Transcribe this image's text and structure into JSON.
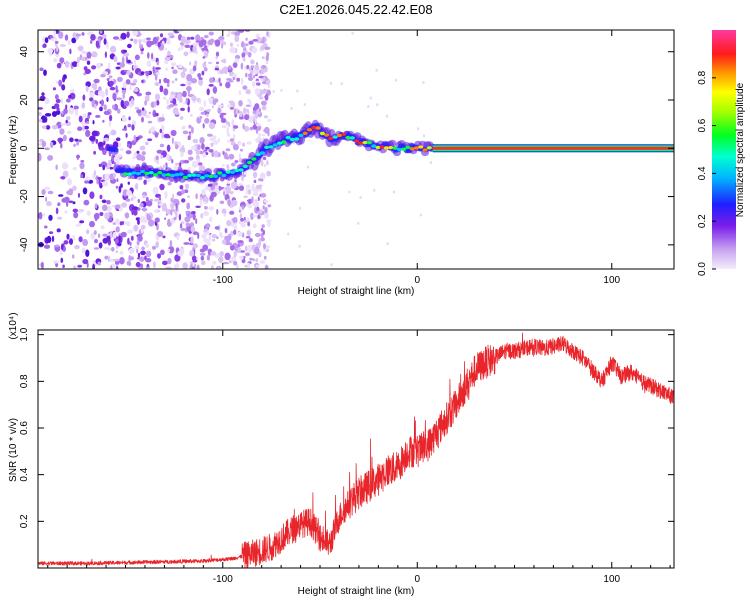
{
  "title": "C2E1.2026.045.22.42.E08",
  "colors": {
    "snr_line": "#e8252b",
    "axis": "#000000"
  },
  "chart_data": [
    {
      "type": "heatmap",
      "name": "spectrogram",
      "xlabel": "Height of straight line (km)",
      "ylabel": "Frequency (Hz)",
      "xlim": [
        -195,
        132
      ],
      "ylim": [
        -50,
        49
      ],
      "xticks": [
        -100,
        0,
        100
      ],
      "yticks": [
        -40,
        -20,
        0,
        20,
        40
      ],
      "colorbar": {
        "label": "Normalized spectral amplitude",
        "range": [
          0.0,
          1.0
        ],
        "ticks": [
          "0.0",
          "0.2",
          "0.4",
          "0.6",
          "0.8"
        ],
        "tick_values": [
          0.0,
          0.2,
          0.4,
          0.6,
          0.8
        ]
      },
      "ridge": [
        {
          "x": -155,
          "y": -10
        },
        {
          "x": -140,
          "y": -10
        },
        {
          "x": -125,
          "y": -11
        },
        {
          "x": -110,
          "y": -12
        },
        {
          "x": -95,
          "y": -10
        },
        {
          "x": -85,
          "y": -6
        },
        {
          "x": -78,
          "y": 0
        },
        {
          "x": -70,
          "y": 3
        },
        {
          "x": -60,
          "y": 5
        },
        {
          "x": -52,
          "y": 9
        },
        {
          "x": -45,
          "y": 4
        },
        {
          "x": -38,
          "y": 6
        },
        {
          "x": -30,
          "y": 3
        },
        {
          "x": -20,
          "y": 1
        },
        {
          "x": -10,
          "y": 0
        },
        {
          "x": 0,
          "y": 0
        },
        {
          "x": 10,
          "y": 0
        },
        {
          "x": 132,
          "y": 0
        }
      ],
      "noise_region_x": [
        -195,
        -82
      ]
    },
    {
      "type": "line",
      "name": "snr",
      "xlabel": "Height of straight line (km)",
      "ylabel": "SNR (10 * v/v)",
      "multiplier": "(x10⁴)",
      "xlim": [
        -195,
        132
      ],
      "ylim": [
        0,
        1.02
      ],
      "xticks": [
        -100,
        0,
        100
      ],
      "yticks": [
        0.2,
        0.4,
        0.6,
        0.8,
        1.0
      ],
      "series": [
        {
          "name": "SNR",
          "x": [
            -195,
            -170,
            -140,
            -110,
            -95,
            -85,
            -75,
            -68,
            -62,
            -55,
            -50,
            -45,
            -40,
            -35,
            -30,
            -25,
            -20,
            -15,
            -10,
            -5,
            0,
            5,
            10,
            15,
            20,
            25,
            30,
            35,
            40,
            45,
            50,
            55,
            60,
            65,
            70,
            75,
            80,
            85,
            90,
            95,
            100,
            105,
            110,
            115,
            120,
            125,
            132
          ],
          "values": [
            0.02,
            0.02,
            0.025,
            0.03,
            0.04,
            0.06,
            0.09,
            0.14,
            0.18,
            0.2,
            0.13,
            0.1,
            0.22,
            0.28,
            0.32,
            0.35,
            0.38,
            0.42,
            0.43,
            0.5,
            0.5,
            0.52,
            0.58,
            0.64,
            0.7,
            0.78,
            0.85,
            0.88,
            0.9,
            0.93,
            0.93,
            0.94,
            0.95,
            0.94,
            0.95,
            0.96,
            0.93,
            0.9,
            0.85,
            0.8,
            0.88,
            0.82,
            0.84,
            0.8,
            0.78,
            0.76,
            0.73
          ]
        }
      ]
    }
  ]
}
